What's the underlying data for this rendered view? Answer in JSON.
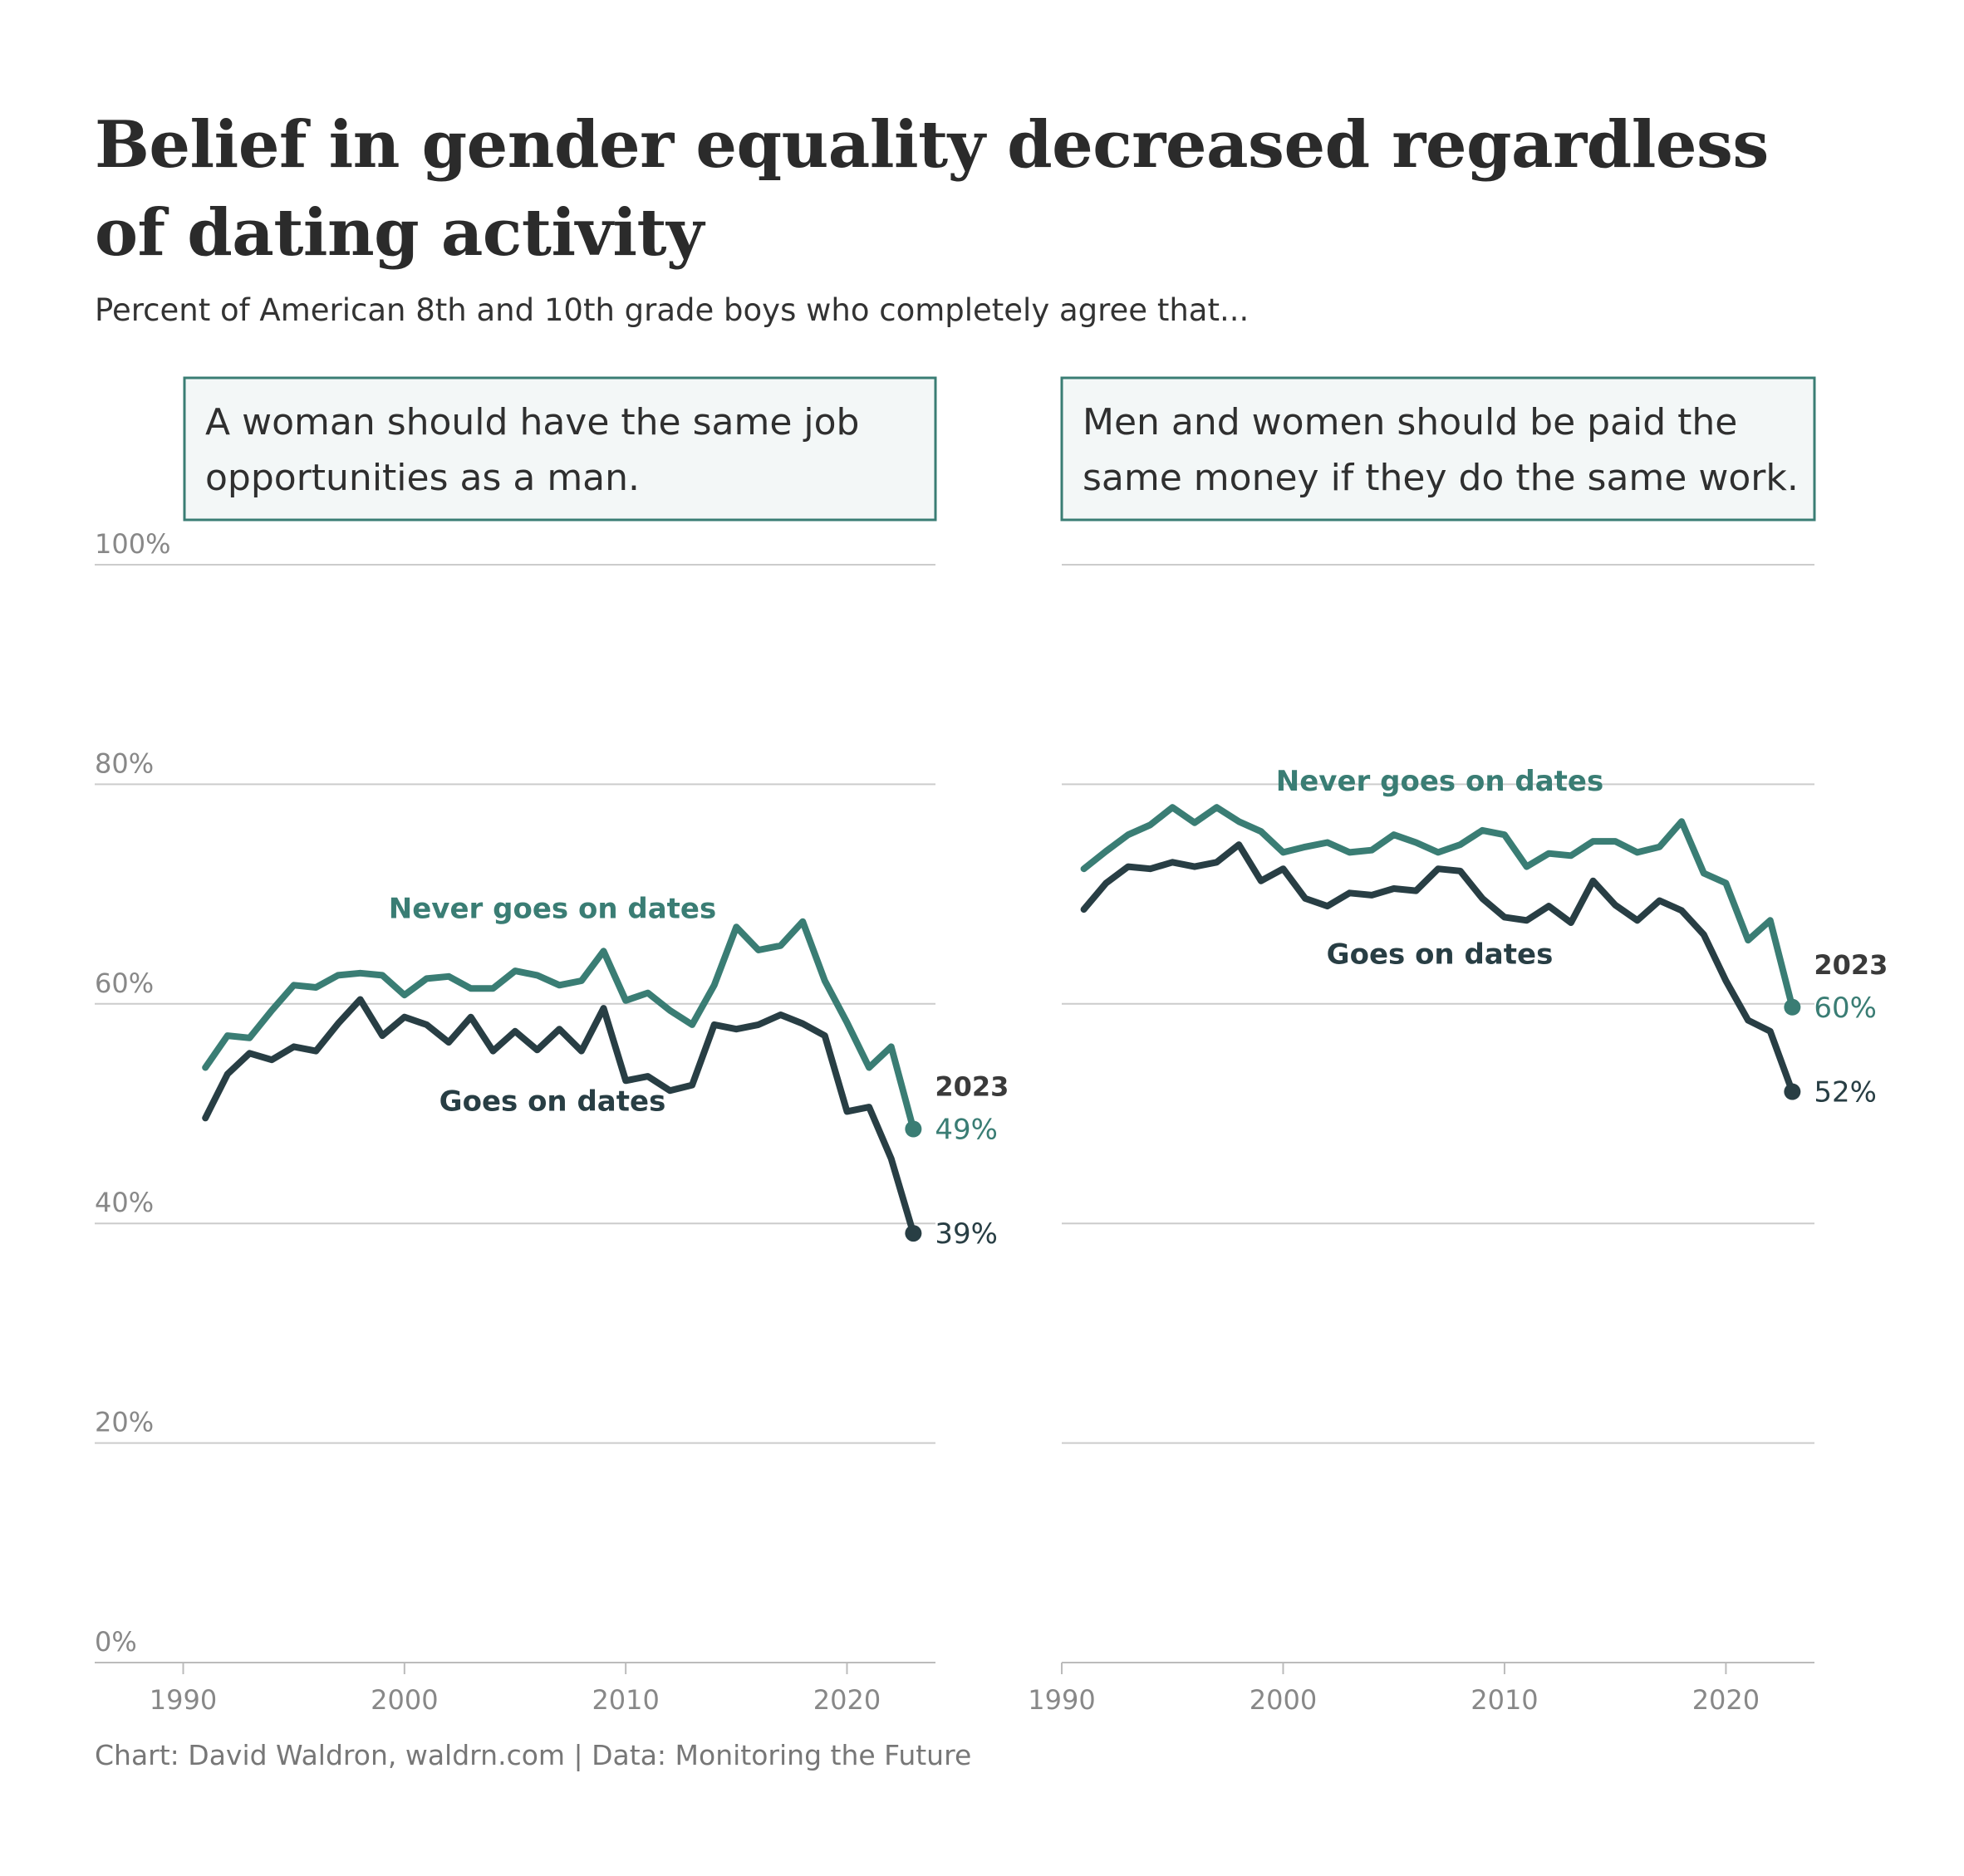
{
  "title": "Belief in gender equality decreased regardless of dating activity",
  "subtitle": "Percent of American 8th and 10th grade boys who completely agree that...",
  "source": "Chart: David Waldron, waldrn.com | Data: Monitoring the Future",
  "colors": {
    "never": "#3a7d74",
    "goes": "#283e44",
    "grid": "#cccccc",
    "panel_bg": "#f3f7f7",
    "panel_border": "#3a7d74"
  },
  "y_ticks": [
    "0%",
    "20%",
    "40%",
    "60%",
    "80%",
    "100%"
  ],
  "x_ticks": [
    "1990",
    "2000",
    "2010",
    "2020"
  ],
  "chart_data": [
    {
      "type": "line",
      "panel_title": [
        "A woman should have the same job",
        "opportunities as a man."
      ],
      "x": [
        1991,
        1992,
        1993,
        1994,
        1995,
        1996,
        1997,
        1998,
        1999,
        2000,
        2001,
        2002,
        2003,
        2004,
        2005,
        2006,
        2007,
        2008,
        2009,
        2010,
        2011,
        2012,
        2013,
        2014,
        2015,
        2016,
        2017,
        2018,
        2019,
        2020,
        2021,
        2022,
        2023
      ],
      "xlim": [
        1986,
        2024
      ],
      "ylim": [
        0,
        100
      ],
      "series": [
        {
          "name": "Never goes on dates",
          "values": [
            54.2,
            57.1,
            56.9,
            59.4,
            61.7,
            61.5,
            62.6,
            62.8,
            62.6,
            60.8,
            62.3,
            62.5,
            61.4,
            61.4,
            63.0,
            62.6,
            61.7,
            62.1,
            64.8,
            60.3,
            61.0,
            59.4,
            58.1,
            61.7,
            67.0,
            64.9,
            65.3,
            67.5,
            62.1,
            58.3,
            54.2,
            56.1,
            48.6
          ],
          "end_label": "49%",
          "label_position": "above"
        },
        {
          "name": "Goes on dates",
          "values": [
            49.6,
            53.6,
            55.5,
            54.9,
            56.1,
            55.7,
            58.2,
            60.4,
            57.1,
            58.8,
            58.1,
            56.5,
            58.8,
            55.7,
            57.5,
            55.8,
            57.7,
            55.7,
            59.6,
            53.0,
            53.4,
            52.1,
            52.6,
            58.1,
            57.7,
            58.1,
            59.0,
            58.2,
            57.1,
            50.2,
            50.6,
            45.9,
            39.1
          ],
          "end_label": "39%",
          "label_position": "below"
        }
      ],
      "end_year_label": "2023"
    },
    {
      "type": "line",
      "panel_title": [
        "Men and women should be paid the",
        "same money if they do the same work."
      ],
      "x": [
        1991,
        1992,
        1993,
        1994,
        1995,
        1996,
        1997,
        1998,
        1999,
        2000,
        2001,
        2002,
        2003,
        2004,
        2005,
        2006,
        2007,
        2008,
        2009,
        2010,
        2011,
        2012,
        2013,
        2014,
        2015,
        2016,
        2017,
        2018,
        2019,
        2020,
        2021,
        2022,
        2023
      ],
      "xlim": [
        1990,
        2024
      ],
      "ylim": [
        0,
        100
      ],
      "series": [
        {
          "name": "Never goes on dates",
          "values": [
            72.3,
            73.9,
            75.4,
            76.3,
            77.9,
            76.5,
            77.9,
            76.6,
            75.7,
            73.8,
            74.3,
            74.7,
            73.8,
            74.0,
            75.4,
            74.7,
            73.8,
            74.5,
            75.8,
            75.4,
            72.5,
            73.7,
            73.5,
            74.8,
            74.8,
            73.8,
            74.3,
            76.6,
            71.9,
            71.0,
            65.8,
            67.6,
            59.7
          ],
          "end_label": "60%",
          "label_position": "above"
        },
        {
          "name": "Goes on dates",
          "values": [
            68.6,
            71.0,
            72.5,
            72.3,
            72.9,
            72.5,
            72.9,
            74.5,
            71.2,
            72.3,
            69.6,
            68.9,
            70.1,
            69.9,
            70.5,
            70.3,
            72.3,
            72.1,
            69.6,
            67.9,
            67.6,
            68.9,
            67.4,
            71.2,
            69.0,
            67.6,
            69.4,
            68.5,
            66.3,
            62.1,
            58.5,
            57.5,
            52.0
          ],
          "end_label": "52%",
          "label_position": "below"
        }
      ],
      "end_year_label": "2023"
    }
  ]
}
